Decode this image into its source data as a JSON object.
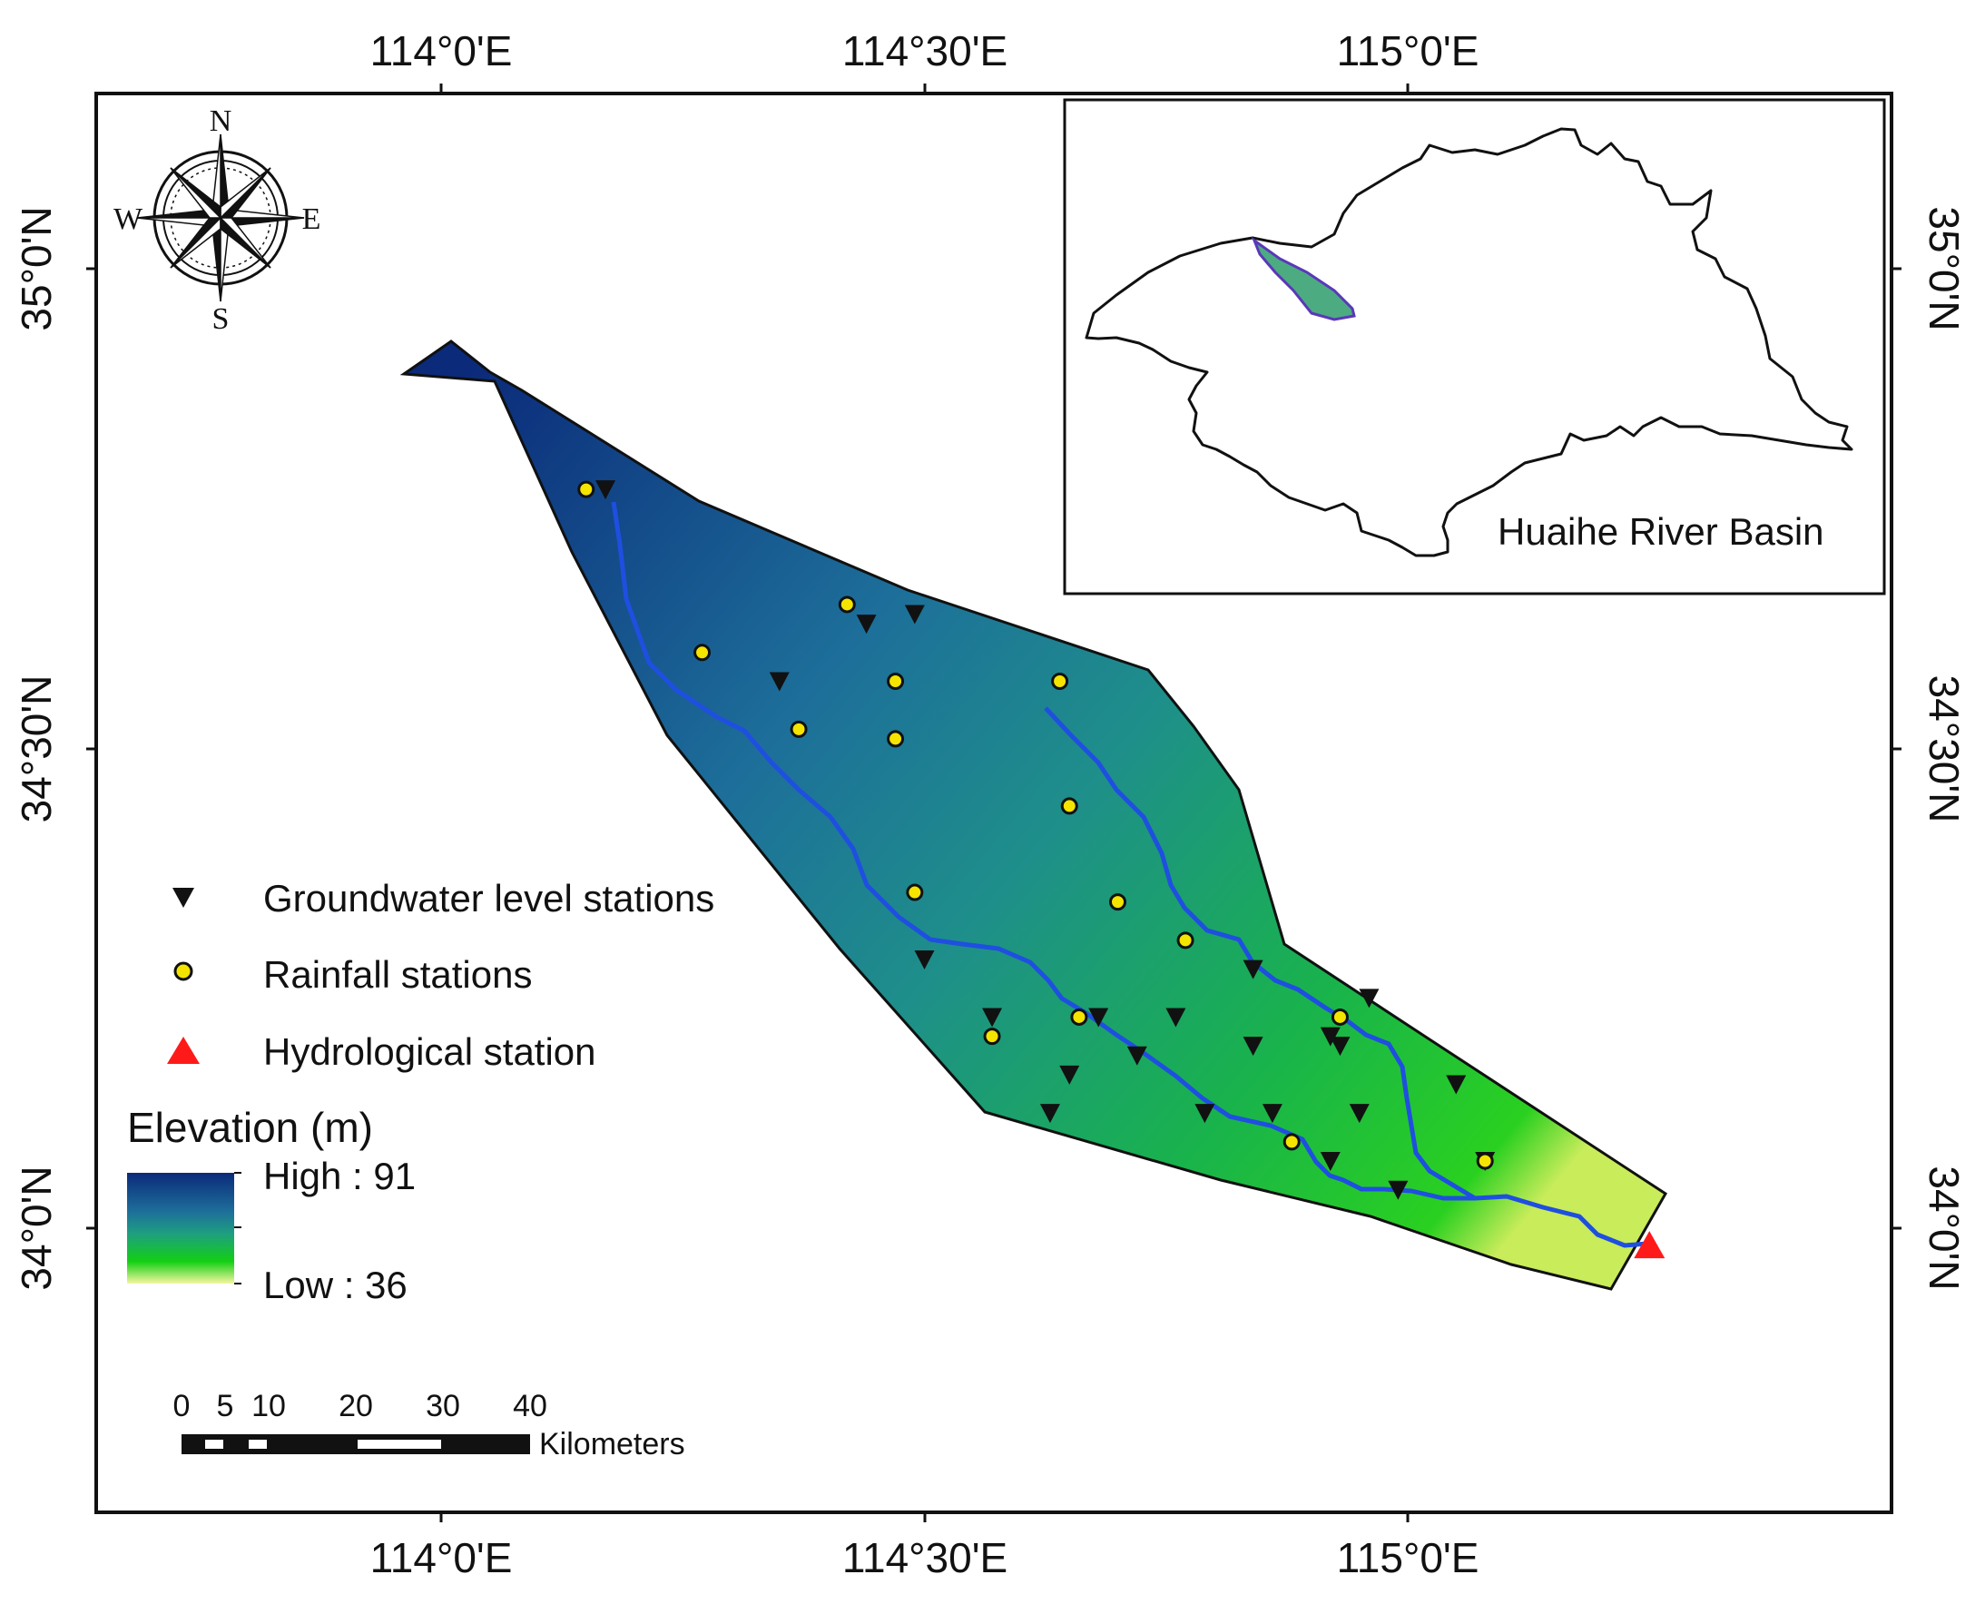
{
  "axes": {
    "lon_labels": [
      {
        "label": "114°0'E",
        "lon": 114.0
      },
      {
        "label": "114°30'E",
        "lon": 114.5
      },
      {
        "label": "115°0'E",
        "lon": 115.0
      }
    ],
    "lat_labels": [
      {
        "label": "35°0'N",
        "lat": 35.0
      },
      {
        "label": "34°30'N",
        "lat": 34.5
      },
      {
        "label": "34°0'N",
        "lat": 34.0
      }
    ]
  },
  "compass": {
    "north": "N",
    "south": "S",
    "east": "E",
    "west": "W"
  },
  "inset": {
    "title": "Huaihe  River Basin"
  },
  "legend": {
    "groundwater": "Groundwater level stations",
    "rainfall": "Rainfall stations",
    "hydrological": "Hydrological station"
  },
  "elevation": {
    "title": "Elevation (m)",
    "high": "High : 91",
    "low": "Low : 36",
    "high_value": 91,
    "low_value": 36
  },
  "scale_bar": {
    "ticks": [
      "0",
      "5",
      "10",
      "20",
      "30",
      "40"
    ],
    "unit": "Kilometers"
  },
  "colors": {
    "elev_high": "#0b2a7a",
    "elev_mid": "#1e8f8a",
    "elev_low": "#13cf13",
    "elev_lowest": "#f0f090",
    "river": "#1f4fe0",
    "rainfall_marker": "#f4e400",
    "hydro_marker": "#ff1a1a",
    "groundwater_marker": "#111111"
  },
  "stations": {
    "groundwater": [
      [
        114.17,
        34.77
      ],
      [
        114.44,
        34.63
      ],
      [
        114.49,
        34.64
      ],
      [
        114.35,
        34.57
      ],
      [
        114.5,
        34.28
      ],
      [
        114.57,
        34.22
      ],
      [
        114.65,
        34.16
      ],
      [
        114.68,
        34.22
      ],
      [
        114.76,
        34.22
      ],
      [
        114.84,
        34.27
      ],
      [
        114.84,
        34.19
      ],
      [
        114.72,
        34.18
      ],
      [
        114.63,
        34.12
      ],
      [
        114.79,
        34.12
      ],
      [
        114.86,
        34.12
      ],
      [
        114.93,
        34.19
      ],
      [
        114.96,
        34.24
      ],
      [
        114.92,
        34.2
      ],
      [
        114.95,
        34.12
      ],
      [
        114.92,
        34.07
      ],
      [
        114.99,
        34.04
      ],
      [
        115.05,
        34.15
      ],
      [
        115.08,
        34.07
      ]
    ],
    "rainfall": [
      [
        114.15,
        34.77
      ],
      [
        114.27,
        34.6
      ],
      [
        114.42,
        34.65
      ],
      [
        114.47,
        34.57
      ],
      [
        114.37,
        34.52
      ],
      [
        114.47,
        34.51
      ],
      [
        114.64,
        34.57
      ],
      [
        114.49,
        34.35
      ],
      [
        114.65,
        34.44
      ],
      [
        114.7,
        34.34
      ],
      [
        114.77,
        34.3
      ],
      [
        114.57,
        34.2
      ],
      [
        114.66,
        34.22
      ],
      [
        114.88,
        34.09
      ],
      [
        114.93,
        34.22
      ],
      [
        115.08,
        34.07
      ]
    ],
    "hydrological": [
      [
        115.25,
        33.98
      ]
    ]
  }
}
